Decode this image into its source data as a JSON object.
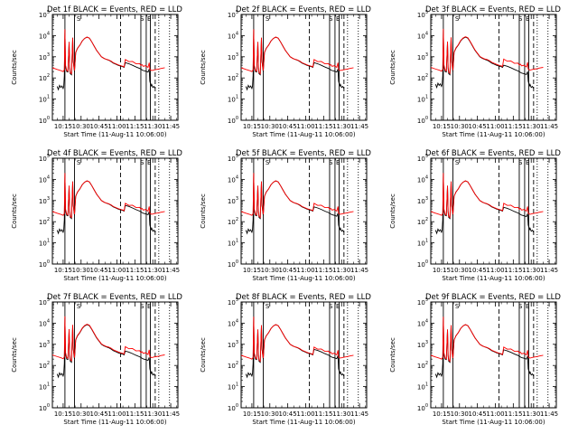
{
  "chart_data": [
    {
      "type": "line",
      "title": "Det 1f BLACK = Events, RED = LLD"
    },
    {
      "type": "line",
      "title": "Det 2f BLACK = Events, RED = LLD"
    },
    {
      "type": "line",
      "title": "Det 3f BLACK = Events, RED = LLD"
    },
    {
      "type": "line",
      "title": "Det 4f BLACK = Events, RED = LLD"
    },
    {
      "type": "line",
      "title": "Det 5f BLACK = Events, RED = LLD"
    },
    {
      "type": "line",
      "title": "Det 6f BLACK = Events, RED = LLD"
    },
    {
      "type": "line",
      "title": "Det 7f BLACK = Events, RED = LLD"
    },
    {
      "type": "line",
      "title": "Det 8f BLACK = Events, RED = LLD"
    },
    {
      "type": "line",
      "title": "Det 9f BLACK = Events, RED = LLD"
    }
  ],
  "common": {
    "ylabel": "Counts/sec",
    "xlabel": "Start Time (11-Aug-11 10:06:00)",
    "x_ticks": [
      "10:15",
      "10:30",
      "10:45",
      "11:00",
      "11:15",
      "11:30",
      "11:45"
    ],
    "x_tick_minutes": [
      15,
      30,
      45,
      60,
      75,
      90,
      105
    ],
    "xlim_minutes": [
      6,
      111
    ],
    "y_scale": "log",
    "ylim": [
      1,
      100000
    ],
    "y_tick_exponents": [
      "0",
      "1",
      "2",
      "3",
      "4",
      "5"
    ],
    "y_tick_base": "10",
    "vertical_markers": {
      "solid": [
        16.5,
        24.5,
        80,
        84.5,
        88
      ],
      "dashed": [
        63,
        92
      ],
      "dotted": [
        95,
        104
      ]
    },
    "marker_letters": [
      {
        "label": "S",
        "x": 28
      },
      {
        "label": "S",
        "x": 81
      },
      {
        "label": "E",
        "x": 87
      }
    ],
    "series": [
      {
        "name": "Events",
        "color": "#000000"
      },
      {
        "name": "LLD",
        "color": "#ff0000"
      }
    ],
    "red_shape": [
      [
        6,
        2.48
      ],
      [
        10,
        2.4
      ],
      [
        13,
        2.35
      ],
      [
        15,
        2.3
      ],
      [
        16,
        2.38
      ],
      [
        16.5,
        4.3
      ],
      [
        17,
        2.6
      ],
      [
        18,
        2.35
      ],
      [
        19,
        2.32
      ],
      [
        20,
        3.7
      ],
      [
        20.5,
        2.5
      ],
      [
        21,
        2.25
      ],
      [
        22,
        2.2
      ],
      [
        23,
        3.9
      ],
      [
        23.5,
        2.8
      ],
      [
        24,
        2.55
      ],
      [
        24.5,
        2.35
      ],
      [
        25.5,
        3.2
      ],
      [
        27,
        3.4
      ],
      [
        29,
        3.55
      ],
      [
        31,
        3.75
      ],
      [
        33,
        3.87
      ],
      [
        35,
        3.93
      ],
      [
        37,
        3.88
      ],
      [
        39,
        3.7
      ],
      [
        41,
        3.5
      ],
      [
        43,
        3.3
      ],
      [
        45,
        3.15
      ],
      [
        47,
        3.0
      ],
      [
        49,
        2.93
      ],
      [
        51,
        2.88
      ],
      [
        53,
        2.85
      ],
      [
        55,
        2.8
      ],
      [
        57,
        2.72
      ],
      [
        59,
        2.67
      ],
      [
        61,
        2.62
      ],
      [
        63,
        2.58
      ],
      [
        65,
        2.55
      ],
      [
        66,
        2.52
      ],
      [
        67,
        2.84
      ],
      [
        70,
        2.8
      ],
      [
        73,
        2.75
      ],
      [
        76,
        2.7
      ],
      [
        79,
        2.65
      ],
      [
        80,
        2.62
      ],
      [
        81,
        2.6
      ],
      [
        82,
        2.58
      ],
      [
        84,
        2.55
      ],
      [
        86,
        2.53
      ],
      [
        87,
        2.72
      ],
      [
        87.5,
        2.4
      ],
      [
        89,
        2.35
      ],
      [
        91,
        2.38
      ],
      [
        93,
        2.4
      ],
      [
        95,
        2.42
      ],
      [
        97,
        2.45
      ],
      [
        100,
        2.48
      ]
    ],
    "black_shape": [
      [
        10,
        1.6
      ],
      [
        11,
        1.45
      ],
      [
        12,
        1.65
      ],
      [
        13,
        1.55
      ],
      [
        14,
        1.62
      ],
      [
        15,
        1.5
      ],
      [
        15.5,
        1.6
      ],
      [
        16,
        2.1
      ],
      [
        16.5,
        4.3
      ],
      [
        17,
        2.55
      ],
      [
        18,
        2.3
      ],
      [
        19,
        2.28
      ],
      [
        20,
        3.7
      ],
      [
        20.5,
        2.45
      ],
      [
        21,
        2.2
      ],
      [
        22,
        2.15
      ],
      [
        23,
        3.9
      ],
      [
        23.5,
        2.75
      ],
      [
        24,
        2.5
      ],
      [
        24.5,
        2.3
      ],
      [
        25.5,
        3.2
      ],
      [
        27,
        3.4
      ],
      [
        29,
        3.55
      ],
      [
        31,
        3.75
      ],
      [
        33,
        3.87
      ],
      [
        35,
        3.93
      ],
      [
        37,
        3.88
      ],
      [
        39,
        3.7
      ],
      [
        41,
        3.5
      ],
      [
        43,
        3.3
      ],
      [
        45,
        3.15
      ],
      [
        47,
        3.0
      ],
      [
        49,
        2.93
      ],
      [
        51,
        2.88
      ],
      [
        53,
        2.84
      ],
      [
        55,
        2.78
      ],
      [
        57,
        2.7
      ],
      [
        59,
        2.65
      ],
      [
        61,
        2.6
      ],
      [
        63,
        2.56
      ],
      [
        65,
        2.53
      ],
      [
        66,
        2.5
      ],
      [
        67,
        2.8
      ],
      [
        70,
        2.75
      ],
      [
        73,
        2.68
      ],
      [
        76,
        2.6
      ],
      [
        79,
        2.53
      ],
      [
        80,
        2.5
      ],
      [
        81,
        2.46
      ],
      [
        82,
        2.43
      ],
      [
        84,
        2.4
      ],
      [
        86,
        2.36
      ],
      [
        87,
        2.5
      ],
      [
        87.5,
        1.85
      ],
      [
        88.5,
        1.6
      ],
      [
        89,
        1.7
      ],
      [
        90,
        1.55
      ],
      [
        91,
        1.6
      ],
      [
        92,
        1.5
      ]
    ]
  }
}
